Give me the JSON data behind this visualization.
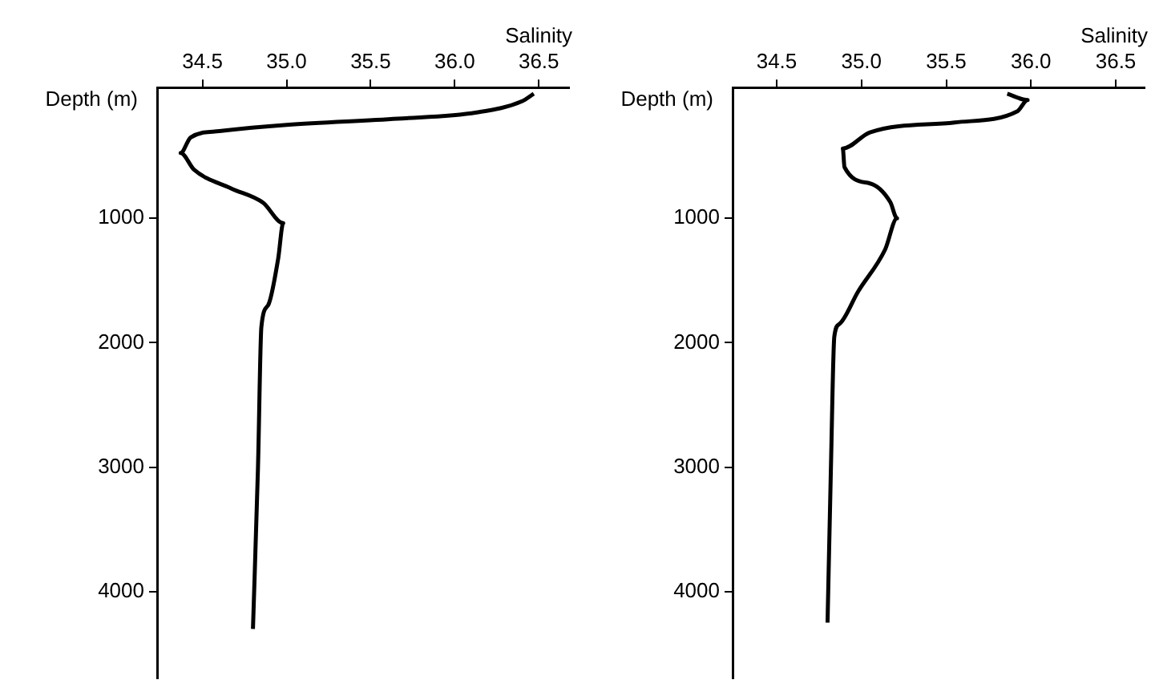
{
  "chart_data": [
    {
      "type": "line",
      "xlabel": "Salinity",
      "ylabel": "Depth (m)",
      "color": "#000000",
      "x": [
        36.47,
        36.4,
        36.13,
        35.66,
        35.0,
        34.6,
        34.43,
        34.37,
        34.45,
        34.67,
        34.86,
        34.98,
        34.95,
        34.89,
        34.85,
        34.83,
        34.8
      ],
      "values": [
        0,
        60,
        150,
        200,
        250,
        300,
        350,
        475,
        610,
        760,
        875,
        1040,
        1325,
        1700,
        1875,
        3000,
        4300
      ],
      "xlim": [
        34.23,
        36.68
      ],
      "xticks": [
        {
          "value": 34.5,
          "label": "34.5"
        },
        {
          "value": 35.0,
          "label": "35.0"
        },
        {
          "value": 35.5,
          "label": "35.5"
        },
        {
          "value": 36.0,
          "label": "36.0"
        },
        {
          "value": 36.5,
          "label": "36.5"
        }
      ],
      "ylim": [
        4700,
        -50
      ],
      "yticks": [
        1000,
        2000,
        3000,
        4000
      ]
    },
    {
      "type": "line",
      "xlabel": "Salinity",
      "ylabel": "Depth (m)",
      "color": "#000000",
      "x": [
        35.86,
        35.98,
        35.92,
        35.55,
        35.05,
        34.89,
        34.9,
        35.05,
        35.17,
        35.21,
        35.14,
        34.98,
        34.87,
        34.84,
        34.82,
        34.8
      ],
      "values": [
        0,
        50,
        140,
        230,
        310,
        440,
        590,
        720,
        870,
        1000,
        1250,
        1590,
        1850,
        1950,
        3000,
        4250
      ],
      "xlim": [
        34.24,
        36.67
      ],
      "xticks": [
        {
          "value": 34.5,
          "label": "34.5"
        },
        {
          "value": 35.0,
          "label": "35.0"
        },
        {
          "value": 35.5,
          "label": "35.5"
        },
        {
          "value": 36.0,
          "label": "36.0"
        },
        {
          "value": 36.5,
          "label": "36.5"
        }
      ],
      "ylim": [
        4700,
        -50
      ],
      "yticks": [
        1000,
        2000,
        3000,
        4000
      ]
    }
  ]
}
